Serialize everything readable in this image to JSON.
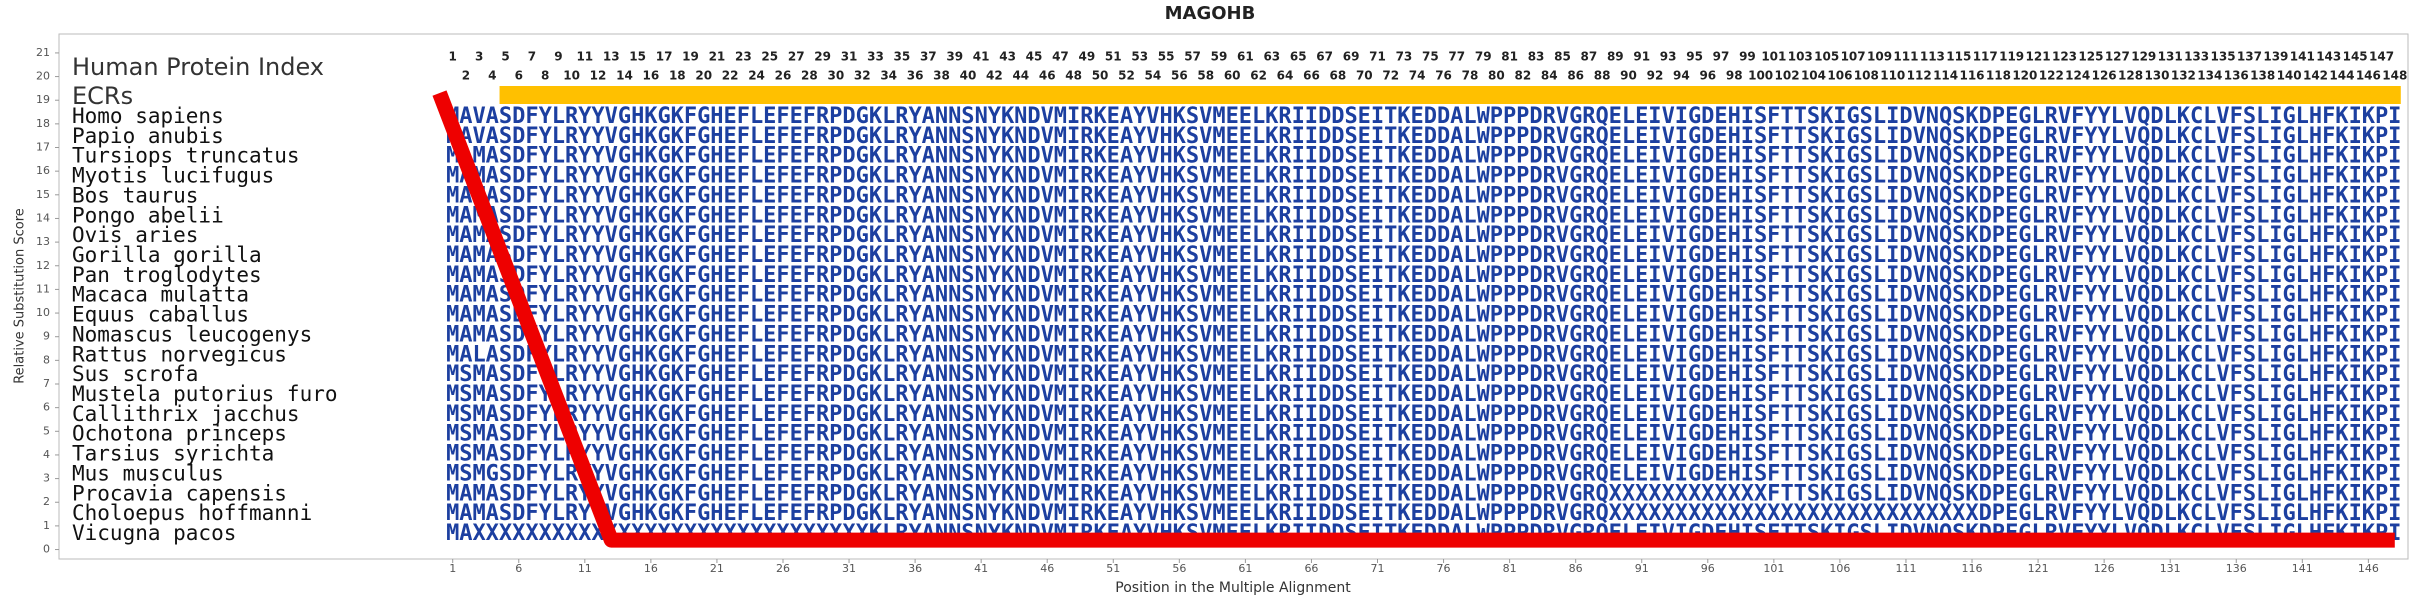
{
  "chart_data": {
    "type": "line",
    "title": "MAGOHB",
    "xlabel": "Position in the Multiple Alignment",
    "ylabel": "Relative Substitution Score",
    "xlim": [
      -28.8,
      149
    ],
    "ylim": [
      -0.4,
      21.8
    ],
    "xticks": [
      1,
      6,
      11,
      16,
      21,
      26,
      31,
      36,
      41,
      46,
      51,
      56,
      61,
      66,
      71,
      76,
      81,
      86,
      91,
      96,
      101,
      106,
      111,
      116,
      121,
      126,
      131,
      136,
      141,
      146
    ],
    "yticks": [
      0,
      1,
      2,
      3,
      4,
      5,
      6,
      7,
      8,
      9,
      10,
      11,
      12,
      13,
      14,
      15,
      16,
      17,
      18,
      19,
      20,
      21
    ],
    "x": [
      0,
      13,
      148
    ],
    "values": [
      19.3,
      0.4,
      0.4
    ],
    "color": "#ee0000",
    "index_label": "Human Protein Index",
    "ecr_label": "ECRs",
    "ecr_color": "#ffc000",
    "ecr_span": [
      5,
      148
    ],
    "protein_index": [
      1,
      2,
      3,
      4,
      5,
      6,
      7,
      8,
      9,
      10,
      11,
      12,
      13,
      14,
      15,
      16,
      17,
      18,
      19,
      20,
      21,
      22,
      23,
      24,
      25,
      26,
      27,
      28,
      29,
      30,
      31,
      32,
      33,
      34,
      35,
      36,
      37,
      38,
      39,
      40,
      41,
      42,
      43,
      44,
      45,
      46,
      47,
      48,
      49,
      50,
      51,
      52,
      53,
      54,
      55,
      56,
      57,
      58,
      59,
      60,
      61,
      62,
      63,
      64,
      65,
      66,
      67,
      68,
      69,
      70,
      71,
      72,
      73,
      74,
      75,
      76,
      77,
      78,
      79,
      80,
      81,
      82,
      83,
      84,
      85,
      86,
      87,
      88,
      89,
      90,
      91,
      92,
      93,
      94,
      95,
      96,
      97,
      98,
      99,
      100,
      101,
      102,
      103,
      104,
      105,
      106,
      107,
      108,
      109,
      110,
      111,
      112,
      113,
      114,
      115,
      116,
      117,
      118,
      119,
      120,
      121,
      122,
      123,
      124,
      125,
      126,
      127,
      128,
      129,
      130,
      131,
      132,
      133,
      134,
      135,
      136,
      137,
      138,
      139,
      140,
      141,
      142,
      143,
      144,
      145,
      146,
      147,
      148
    ],
    "alignment": [
      {
        "species": "Homo sapiens",
        "sequence": "MAVASDFYLRYYVGHKGKFGHEFLEFEFRPDGKLRYANNSNYKNDVMIRKEAYVHKSVMEELKRIIDDSEITKEDDALWPPPDRVGRQELEIVIGDEHISFTTSKIGSLIDVNQSKDPEGLRVFYYLVQDLKCLVFSLIGLHFKIKPI"
      },
      {
        "species": "Papio anubis",
        "sequence": "MAVASDFYLRYYVGHKGKFGHEFLEFEFRPDGKLRYANNSNYKNDVMIRKEAYVHKSVMEELKRIIDDSEITKEDDALWPPPDRVGRQELEIVIGDEHISFTTSKIGSLIDVNQSKDPEGLRVFYYLVQDLKCLVFSLIGLHFKIKPI"
      },
      {
        "species": "Tursiops truncatus",
        "sequence": "MAMASDFYLRYYVGHKGKFGHEFLEFEFRPDGKLRYANNSNYKNDVMIRKEAYVHKSVMEELKRIIDDSEITKEDDALWPPPDRVGRQELEIVIGDEHISFTTSKIGSLIDVNQSKDPEGLRVFYYLVQDLKCLVFSLIGLHFKIKPI"
      },
      {
        "species": "Myotis lucifugus",
        "sequence": "MAMASDFYLRYYVGHKGKFGHEFLEFEFRPDGKLRYANNSNYKNDVMIRKEAYVHKSVMEELKRIIDDSEITKEDDALWPPPDRVGRQELEIVIGDEHISFTTSKIGSLIDVNQSKDPEGLRVFYYLVQDLKCLVFSLIGLHFKIKPI"
      },
      {
        "species": "Bos taurus",
        "sequence": "MAMASDFYLRYYVGHKGKFGHEFLEFEFRPDGKLRYANNSNYKNDVMIRKEAYVHKSVMEELKRIIDDSEITKEDDALWPPPDRVGRQELEIVIGDEHISFTTSKIGSLIDVNQSKDPEGLRVFYYLVQDLKCLVFSLIGLHFKIKPI"
      },
      {
        "species": "Pongo abelii",
        "sequence": "MAMASDFYLRYYVGHKGKFGHEFLEFEFRPDGKLRYANNSNYKNDVMIRKEAYVHKSVMEELKRIIDDSEITKEDDALWPPPDRVGRQELEIVIGDEHISFTTSKIGSLIDVNQSKDPEGLRVFYYLVQDLKCLVFSLIGLHFKIKPI"
      },
      {
        "species": "Ovis aries",
        "sequence": "MAMASDFYLRYYVGHKGKFGHEFLEFEFRPDGKLRYANNSNYKNDVMIRKEAYVHKSVMEELKRIIDDSEITKEDDALWPPPDRVGRQELEIVIGDEHISFTTSKIGSLIDVNQSKDPEGLRVFYYLVQDLKCLVFSLIGLHFKIKPI"
      },
      {
        "species": "Gorilla gorilla",
        "sequence": "MAMASDFYLRYYVGHKGKFGHEFLEFEFRPDGKLRYANNSNYKNDVMIRKEAYVHKSVMEELKRIIDDSEITKEDDALWPPPDRVGRQELEIVIGDEHISFTTSKIGSLIDVNQSKDPEGLRVFYYLVQDLKCLVFSLIGLHFKIKPI"
      },
      {
        "species": "Pan troglodytes",
        "sequence": "MAMASDFYLRYYVGHKGKFGHEFLEFEFRPDGKLRYANNSNYKNDVMIRKEAYVHKSVMEELKRIIDDSEITKEDDALWPPPDRVGRQELEIVIGDEHISFTTSKIGSLIDVNQSKDPEGLRVFYYLVQDLKCLVFSLIGLHFKIKPI"
      },
      {
        "species": "Macaca mulatta",
        "sequence": "MAMASDFYLRYYVGHKGKFGHEFLEFEFRPDGKLRYANNSNYKNDVMIRKEAYVHKSVMEELKRIIDDSEITKEDDALWPPPDRVGRQELEIVIGDEHISFTTSKIGSLIDVNQSKDPEGLRVFYYLVQDLKCLVFSLIGLHFKIKPI"
      },
      {
        "species": "Equus caballus",
        "sequence": "MAMASDFYLRYYVGHKGKFGHEFLEFEFRPDGKLRYANNSNYKNDVMIRKEAYVHKSVMEELKRIIDDSEITKEDDALWPPPDRVGRQELEIVIGDEHISFTTSKIGSLIDVNQSKDPEGLRVFYYLVQDLKCLVFSLIGLHFKIKPI"
      },
      {
        "species": "Nomascus leucogenys",
        "sequence": "MAMASDFYLRYYVGHKGKFGHEFLEFEFRPDGKLRYANNSNYKNDVMIRKEAYVHKSVMEELKRIIDDSEITKEDDALWPPPDRVGRQELEIVIGDEHISFTTSKIGSLIDVNQSKDPEGLRVFYYLVQDLKCLVFSLIGLHFKIKPI"
      },
      {
        "species": "Rattus norvegicus",
        "sequence": "MALASDFYLRYYVGHKGKFGHEFLEFEFRPDGKLRYANNSNYKNDVMIRKEAYVHKSVMEELKRIIDDSEITKEDDALWPPPDRVGRQELEIVIGDEHISFTTSKIGSLIDVNQSKDPEGLRVFYYLVQDLKCLVFSLIGLHFKIKPI"
      },
      {
        "species": "Sus scrofa",
        "sequence": "MSMASDFYLRYYVGHKGKFGHEFLEFEFRPDGKLRYANNSNYKNDVMIRKEAYVHKSVMEELKRIIDDSEITKEDDALWPPPDRVGRQELEIVIGDEHISFTTSKIGSLIDVNQSKDPEGLRVFYYLVQDLKCLVFSLIGLHFKIKPI"
      },
      {
        "species": "Mustela putorius furo",
        "sequence": "MSMASDFYLRYYVGHKGKFGHEFLEFEFRPDGKLRYANNSNYKNDVMIRKEAYVHKSVMEELKRIIDDSEITKEDDALWPPPDRVGRQELEIVIGDEHISFTTSKIGSLIDVNQSKDPEGLRVFYYLVQDLKCLVFSLIGLHFKIKPI"
      },
      {
        "species": "Callithrix jacchus",
        "sequence": "MSMASDFYLRYYVGHKGKFGHEFLEFEFRPDGKLRYANNSNYKNDVMIRKEAYVHKSVMEELKRIIDDSEITKEDDALWPPPDRVGRQELEIVIGDEHISFTTSKIGSLIDVNQSKDPEGLRVFYYLVQDLKCLVFSLIGLHFKIKPI"
      },
      {
        "species": "Ochotona princeps",
        "sequence": "MSMASDFYLRYYVGHKGKFGHEFLEFEFRPDGKLRYANNSNYKNDVMIRKEAYVHKSVMEELKRIIDDSEITKEDDALWPPPDRVGRQELEIVIGDEHISFTTSKIGSLIDVNQSKDPEGLRVFYYLVQDLKCLVFSLIGLHFKIKPI"
      },
      {
        "species": "Tarsius syrichta",
        "sequence": "MSMASDFYLRYYVGHKGKFGHEFLEFEFRPDGKLRYANNSNYKNDVMIRKEAYVHKSVMEELKRIIDDSEITKEDDALWPPPDRVGRQELEIVIGDEHISFTTSKIGSLIDVNQSKDPEGLRVFYYLVQDLKCLVFSLIGLHFKIKPI"
      },
      {
        "species": "Mus musculus",
        "sequence": "MSMGSDFYLRYYVGHKGKFGHEFLEFEFRPDGKLRYANNSNYKNDVMIRKEAYVHKSVMEELKRIIDDSEITKEDDALWPPPDRVGRQELEIVIGDEHISFTTSKIGSLIDVNQSKDPEGLRVFYYLVQDLKCLVFSLIGLHFKIKPI"
      },
      {
        "species": "Procavia capensis",
        "sequence": "MAMASDFYLRYYVGHKGKFGHEFLEFEFRPDGKLRYANNSNYKNDVMIRKEAYVHKSVMEELKRIIDDSEITKEDDALWPPPDRVGRQXXXXXXXXXXXXFTTSKIGSLIDVNQSKDPEGLRVFYYLVQDLKCLVFSLIGLHFKIKPI"
      },
      {
        "species": "Choloepus hoffmanni",
        "sequence": "MAMASDFYLRYYVGHKGKFGHEFLEFEFRPDGKLRYANNSNYKNDVMIRKEAYVHKSVMEELKRIIDDSEITKEDDALWPPPDRVGRQXXXXXXXXXXXXXXXXXXXXXXXXXXXXDPEGLRVFYYLVQDLKCLVFSLIGLHFKIKPI"
      },
      {
        "species": "Vicugna pacos",
        "sequence": "MAXXXXXXXXXXXXXXXXXXXXXXXXXXXXXXKLRYANNSNYKNDVMIRKEAYVHKSVMEELKRIIDDSEITKEDDALWPPPDRVGRQELEIVIGDEHISFTTSKIGSLIDVNQSKDPEGLRVFYYLVQDLKCLVFSLIGLHFKIKPI"
      }
    ]
  }
}
